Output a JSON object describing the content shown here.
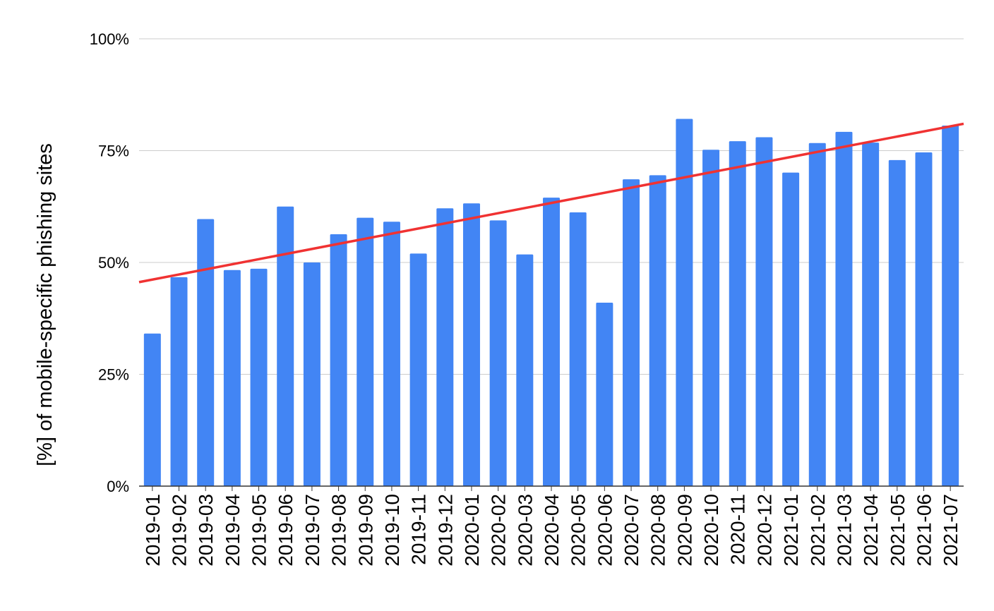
{
  "chart_data": {
    "type": "bar",
    "title": "",
    "xlabel": "",
    "ylabel": "[%] of mobile-specific phishing sites",
    "ylim": [
      0,
      100
    ],
    "yticks": [
      0,
      25,
      50,
      75,
      100
    ],
    "ytick_labels": [
      "0%",
      "25%",
      "50%",
      "75%",
      "100%"
    ],
    "grid": true,
    "legend": "none",
    "categories": [
      "2019-01",
      "2019-02",
      "2019-03",
      "2019-04",
      "2019-05",
      "2019-06",
      "2019-07",
      "2019-08",
      "2019-09",
      "2019-10",
      "2019-11",
      "2019-12",
      "2020-01",
      "2020-02",
      "2020-03",
      "2020-04",
      "2020-05",
      "2020-06",
      "2020-07",
      "2020-08",
      "2020-09",
      "2020-10",
      "2020-11",
      "2020-12",
      "2021-01",
      "2021-02",
      "2021-03",
      "2021-04",
      "2021-05",
      "2021-06",
      "2021-07"
    ],
    "values": [
      34.1,
      46.7,
      59.7,
      48.3,
      48.6,
      62.5,
      50.0,
      56.3,
      60.0,
      59.1,
      52.0,
      62.1,
      63.2,
      59.4,
      51.8,
      64.5,
      61.2,
      41.0,
      68.6,
      69.5,
      82.1,
      75.2,
      77.1,
      78.0,
      70.1,
      76.7,
      79.2,
      76.8,
      72.9,
      74.6,
      80.6
    ],
    "trendline": {
      "type": "linear",
      "start": 45.6,
      "end": 81.0
    },
    "colors": {
      "bar": "#4285f4",
      "trendline": "#f03232",
      "grid": "#cccccc",
      "axis": "#333333"
    }
  }
}
